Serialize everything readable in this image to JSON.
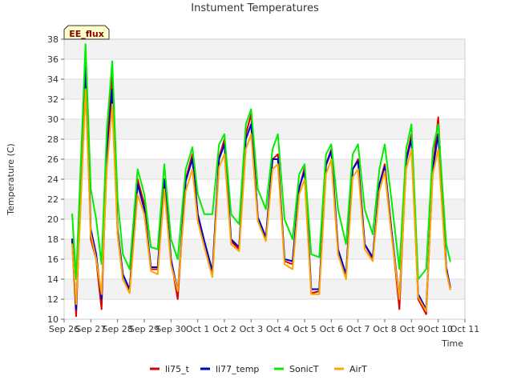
{
  "chart_data": {
    "type": "line",
    "title": "Instument Temperatures",
    "xlabel": "Time",
    "ylabel": "Temperature (C)",
    "badge": "EE_flux",
    "ylim": [
      10,
      38
    ],
    "yticks": [
      10,
      12,
      14,
      16,
      18,
      20,
      22,
      24,
      26,
      28,
      30,
      32,
      34,
      36,
      38
    ],
    "xlim": [
      "2023-09-26",
      "2023-10-11"
    ],
    "xtick_labels": [
      "Sep 26",
      "Sep 27",
      "Sep 28",
      "Sep 29",
      "Sep 30",
      "Oct 1",
      "Oct 2",
      "Oct 3",
      "Oct 4",
      "Oct 5",
      "Oct 6",
      "Oct 7",
      "Oct 8",
      "Oct 9",
      "Oct 10",
      "Oct 11"
    ],
    "grid": true,
    "legend_position": "bottom",
    "series": [
      {
        "name": "li75_t",
        "color": "#dd0000",
        "x": [
          0.3,
          0.45,
          0.6,
          0.8,
          1.0,
          1.2,
          1.4,
          1.6,
          1.8,
          2.0,
          2.2,
          2.45,
          2.75,
          3.0,
          3.25,
          3.5,
          3.75,
          4.0,
          4.25,
          4.55,
          4.8,
          5.0,
          5.25,
          5.55,
          5.8,
          6.0,
          6.25,
          6.55,
          6.8,
          7.0,
          7.25,
          7.55,
          7.8,
          8.0,
          8.25,
          8.55,
          8.8,
          9.0,
          9.25,
          9.55,
          9.8,
          10.0,
          10.25,
          10.55,
          10.8,
          11.0,
          11.25,
          11.55,
          11.8,
          12.0,
          12.25,
          12.55,
          12.8,
          13.0,
          13.25,
          13.55,
          13.8,
          14.0,
          14.3,
          14.45
        ],
        "y": [
          17.8,
          10.3,
          22,
          35.8,
          18,
          16,
          11,
          27,
          34.8,
          18.5,
          14,
          12.8,
          24,
          21.5,
          15,
          15,
          23.5,
          16,
          12,
          24,
          26.5,
          20.5,
          17.5,
          14.5,
          26.2,
          28,
          17.8,
          17,
          28.5,
          30.5,
          20,
          18,
          26,
          26.5,
          15.8,
          15.5,
          23,
          25.2,
          12.6,
          12.8,
          25.5,
          27,
          17,
          14.2,
          25,
          26,
          17.5,
          16,
          23.5,
          25.5,
          19,
          11,
          26,
          28.5,
          12,
          10.5,
          25,
          30.2,
          15,
          13
        ]
      },
      {
        "name": "li77_temp",
        "color": "#0000cc",
        "x": [
          0.3,
          0.45,
          0.6,
          0.8,
          1.0,
          1.2,
          1.4,
          1.6,
          1.8,
          2.0,
          2.2,
          2.45,
          2.75,
          3.0,
          3.25,
          3.5,
          3.75,
          4.0,
          4.25,
          4.55,
          4.8,
          5.0,
          5.25,
          5.55,
          5.8,
          6.0,
          6.25,
          6.55,
          6.8,
          7.0,
          7.25,
          7.55,
          7.8,
          8.0,
          8.25,
          8.55,
          8.8,
          9.0,
          9.25,
          9.55,
          9.8,
          10.0,
          10.25,
          10.55,
          10.8,
          11.0,
          11.25,
          11.55,
          11.8,
          12.0,
          12.25,
          12.55,
          12.8,
          13.0,
          13.25,
          13.55,
          13.8,
          14.0,
          14.3,
          14.45
        ],
        "y": [
          18,
          11,
          21,
          35,
          19,
          16.5,
          12,
          26,
          33,
          19,
          14.5,
          13,
          23.5,
          21,
          15.2,
          15.2,
          24,
          16,
          12.8,
          23.8,
          26,
          20.5,
          17.8,
          14.8,
          26,
          27.5,
          18,
          17.2,
          28,
          29.5,
          20.2,
          18.2,
          26,
          26,
          16,
          15.8,
          23.2,
          24.8,
          13,
          13,
          25.4,
          26.8,
          17,
          14.5,
          25,
          25.8,
          17.5,
          16.2,
          23.5,
          25.2,
          19,
          12,
          25.8,
          28,
          12.5,
          11,
          25,
          28.5,
          15.2,
          13.2
        ]
      },
      {
        "name": "SonicT",
        "color": "#00ee00",
        "x": [
          0.3,
          0.45,
          0.6,
          0.8,
          1.0,
          1.2,
          1.4,
          1.6,
          1.8,
          2.0,
          2.2,
          2.45,
          2.75,
          3.0,
          3.25,
          3.5,
          3.75,
          4.0,
          4.25,
          4.55,
          4.8,
          5.0,
          5.25,
          5.55,
          5.8,
          6.0,
          6.25,
          6.55,
          6.8,
          7.0,
          7.25,
          7.55,
          7.8,
          8.0,
          8.25,
          8.55,
          8.8,
          9.0,
          9.25,
          9.55,
          9.8,
          10.0,
          10.25,
          10.55,
          10.8,
          11.0,
          11.25,
          11.55,
          11.8,
          12.0,
          12.25,
          12.55,
          12.8,
          13.0,
          13.25,
          13.55,
          13.8,
          14.0,
          14.3,
          14.45
        ],
        "y": [
          20.5,
          14,
          24,
          37.5,
          23,
          20,
          15.5,
          29,
          35.8,
          22,
          16.5,
          15,
          25,
          22.5,
          17.2,
          17,
          25.5,
          18,
          16,
          25,
          27.2,
          22.5,
          20.5,
          20.5,
          27.5,
          28.5,
          20.5,
          19.5,
          29.5,
          31,
          23,
          21,
          27,
          28.5,
          20,
          18,
          24.5,
          25.5,
          16.5,
          16.2,
          26.5,
          27.5,
          21,
          17.5,
          26.5,
          27.5,
          21,
          18.5,
          25,
          27.5,
          22,
          15,
          27,
          29.5,
          14,
          15,
          27,
          29.5,
          17.5,
          15.8
        ]
      },
      {
        "name": "AirT",
        "color": "#ffa500",
        "x": [
          0.3,
          0.45,
          0.6,
          0.8,
          1.0,
          1.2,
          1.4,
          1.6,
          1.8,
          2.0,
          2.2,
          2.45,
          2.75,
          3.0,
          3.25,
          3.5,
          3.75,
          4.0,
          4.25,
          4.55,
          4.8,
          5.0,
          5.25,
          5.55,
          5.8,
          6.0,
          6.25,
          6.55,
          6.8,
          7.0,
          7.25,
          7.55,
          7.8,
          8.0,
          8.25,
          8.55,
          8.8,
          9.0,
          9.25,
          9.55,
          9.8,
          10.0,
          10.25,
          10.55,
          10.8,
          11.0,
          11.25,
          11.55,
          11.8,
          12.0,
          12.25,
          12.55,
          12.8,
          13.0,
          13.25,
          13.55,
          13.8,
          14.0,
          14.3,
          14.45
        ],
        "y": [
          17.5,
          11.5,
          20,
          33,
          18.5,
          16,
          12.5,
          25,
          31.5,
          18.5,
          14,
          12.6,
          22.5,
          20.5,
          14.8,
          14.5,
          23,
          15.5,
          12.8,
          22.8,
          25,
          19.8,
          17.2,
          14.2,
          25.2,
          26.5,
          17.5,
          16.8,
          27,
          28.5,
          19.8,
          17.8,
          25,
          25.5,
          15.5,
          15,
          22.5,
          24,
          12.5,
          12.5,
          24.5,
          26,
          16.5,
          14,
          24.2,
          25,
          17,
          15.8,
          22.8,
          24.8,
          18.5,
          12,
          25,
          27,
          12.2,
          10.8,
          24.5,
          27,
          14.8,
          13
        ]
      }
    ]
  }
}
